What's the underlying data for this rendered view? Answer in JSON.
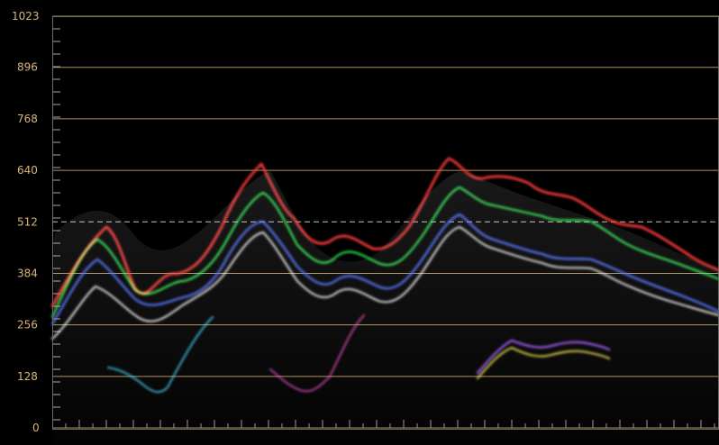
{
  "scope": {
    "y_ticks": [
      "1023",
      "896",
      "768",
      "640",
      "512",
      "384",
      "256",
      "128",
      "0"
    ],
    "reference_level": 512
  },
  "colors": {
    "label": "#d6b57a",
    "reference_line": "#b89a63",
    "dashed_line": "#d8d8d8",
    "frame": "#6c6c6c"
  }
}
